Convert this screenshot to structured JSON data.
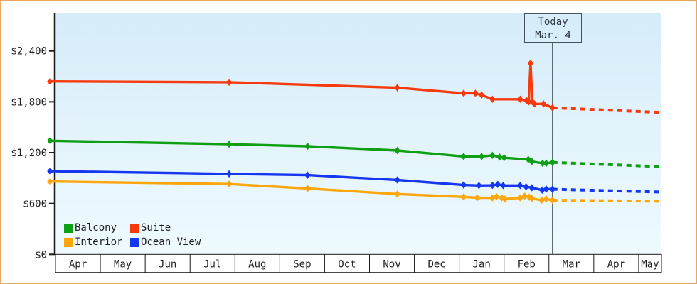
{
  "today": {
    "label": "Today",
    "date": "Mar. 4"
  },
  "colors": {
    "frame_border": "#e9a85e",
    "axis": "#1a1a1a",
    "text": "#222222",
    "today_line": "#44505a",
    "plot_bg_top": "#d5ecf9",
    "plot_bg_bottom": "#eefafe",
    "month_cell_bg": "#ffffff"
  },
  "legend": [
    {
      "label": "Balcony",
      "color": "#0f9f14"
    },
    {
      "label": "Suite",
      "color": "#f63a0e"
    },
    {
      "label": "Interior",
      "color": "#ffa60d"
    },
    {
      "label": "Ocean View",
      "color": "#1537f0"
    }
  ],
  "chart_data": {
    "type": "line",
    "title": "",
    "x_unit": "months_from_first_apr",
    "x_categories": [
      "Apr",
      "May",
      "Jun",
      "Jul",
      "Aug",
      "Sep",
      "Oct",
      "Nov",
      "Dec",
      "Jan",
      "Feb",
      "Mar",
      "Apr",
      "May"
    ],
    "x_last_cell_truncated": true,
    "y_ticks": [
      {
        "label": "$0",
        "value": 0
      },
      {
        "label": "$600",
        "value": 600
      },
      {
        "label": "$1,200",
        "value": 1200
      },
      {
        "label": "$1,800",
        "value": 1800
      },
      {
        "label": "$2,400",
        "value": 2400
      }
    ],
    "ylim": [
      0,
      2850
    ],
    "xlim_months": [
      -0.12,
      13.5
    ],
    "grid": false,
    "legend_position": "bottom-left",
    "today_marker": {
      "x_months": 11.08,
      "label": "Today",
      "date": "Mar. 4"
    },
    "series": [
      {
        "name": "Suite",
        "color": "#f63a0e",
        "points": [
          [
            -0.12,
            2040
          ],
          [
            3.87,
            2030
          ],
          [
            7.62,
            1965
          ],
          [
            9.1,
            1900
          ],
          [
            9.36,
            1900
          ],
          [
            9.5,
            1880
          ],
          [
            9.74,
            1830
          ],
          [
            10.36,
            1830
          ],
          [
            10.5,
            1815
          ],
          [
            10.55,
            1800
          ],
          [
            10.59,
            2255
          ],
          [
            10.63,
            1800
          ],
          [
            10.68,
            1775
          ],
          [
            10.88,
            1775
          ],
          [
            11.08,
            1730
          ]
        ],
        "forecast": [
          [
            11.08,
            1730
          ],
          [
            13.5,
            1675
          ]
        ]
      },
      {
        "name": "Balcony",
        "color": "#0f9f14",
        "points": [
          [
            -0.12,
            1340
          ],
          [
            3.87,
            1300
          ],
          [
            5.62,
            1275
          ],
          [
            7.62,
            1225
          ],
          [
            9.1,
            1155
          ],
          [
            9.5,
            1155
          ],
          [
            9.74,
            1168
          ],
          [
            9.9,
            1148
          ],
          [
            10.0,
            1140
          ],
          [
            10.54,
            1120
          ],
          [
            10.62,
            1095
          ],
          [
            10.86,
            1075
          ],
          [
            10.94,
            1075
          ],
          [
            11.08,
            1085
          ]
        ],
        "forecast": [
          [
            11.08,
            1085
          ],
          [
            13.5,
            1035
          ]
        ]
      },
      {
        "name": "Ocean View",
        "color": "#1537f0",
        "points": [
          [
            -0.12,
            982
          ],
          [
            3.87,
            950
          ],
          [
            5.62,
            935
          ],
          [
            7.62,
            878
          ],
          [
            9.1,
            818
          ],
          [
            9.44,
            812
          ],
          [
            9.74,
            814
          ],
          [
            9.86,
            826
          ],
          [
            9.98,
            812
          ],
          [
            10.36,
            812
          ],
          [
            10.49,
            797
          ],
          [
            10.62,
            786
          ],
          [
            10.85,
            758
          ],
          [
            10.94,
            770
          ],
          [
            11.08,
            768
          ]
        ],
        "forecast": [
          [
            11.08,
            768
          ],
          [
            13.5,
            735
          ]
        ]
      },
      {
        "name": "Interior",
        "color": "#ffa60d",
        "points": [
          [
            -0.12,
            860
          ],
          [
            3.87,
            830
          ],
          [
            5.62,
            777
          ],
          [
            7.62,
            712
          ],
          [
            9.1,
            678
          ],
          [
            9.4,
            668
          ],
          [
            9.74,
            667
          ],
          [
            9.83,
            681
          ],
          [
            9.95,
            667
          ],
          [
            10.02,
            653
          ],
          [
            10.36,
            667
          ],
          [
            10.46,
            687
          ],
          [
            10.56,
            675
          ],
          [
            10.62,
            659
          ],
          [
            10.84,
            639
          ],
          [
            10.94,
            653
          ],
          [
            11.08,
            639
          ]
        ],
        "forecast": [
          [
            11.08,
            639
          ],
          [
            13.5,
            627
          ]
        ]
      }
    ]
  }
}
